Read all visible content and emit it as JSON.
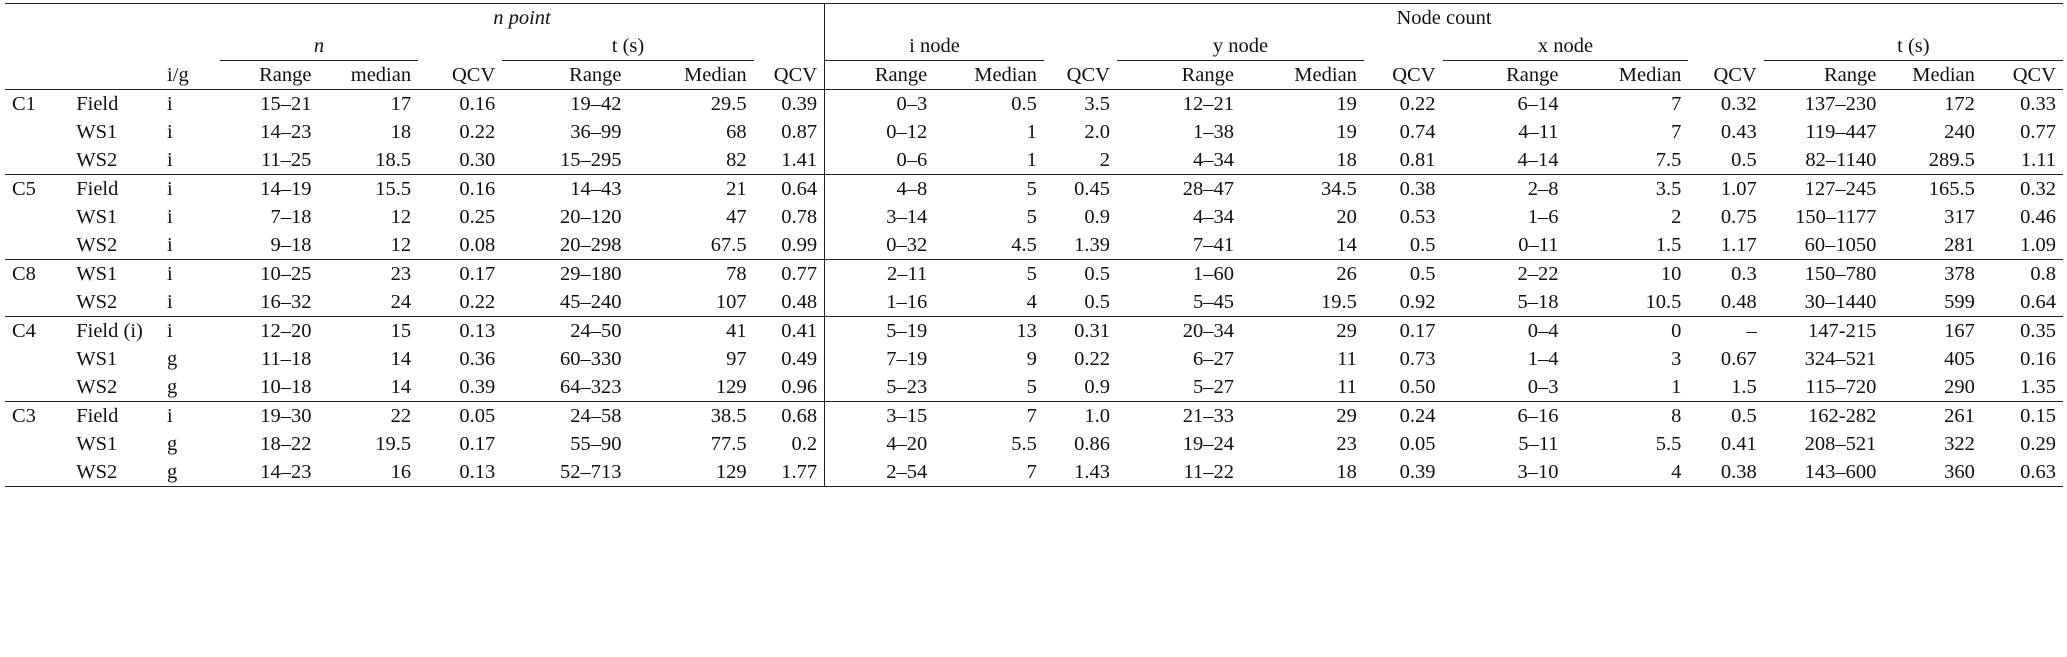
{
  "header": {
    "n_point": "n point",
    "node_count": "Node count",
    "n": "n",
    "t_s": "t (s)",
    "i_node": "i node",
    "y_node": "y node",
    "x_node": "x node",
    "ig": "i/g",
    "range": "Range",
    "median_lc": "median",
    "median": "Median",
    "qcv": "QCV"
  },
  "groups": [
    {
      "code": "C1",
      "rows": [
        {
          "site": "Field",
          "ig": "i",
          "v": [
            "15–21",
            "17",
            "0.16",
            "19–42",
            "29.5",
            "0.39",
            "0–3",
            "0.5",
            "3.5",
            "12–21",
            "19",
            "0.22",
            "6–14",
            "7",
            "0.32",
            "137–230",
            "172",
            "0.33"
          ]
        },
        {
          "site": "WS1",
          "ig": "i",
          "v": [
            "14–23",
            "18",
            "0.22",
            "36–99",
            "68",
            "0.87",
            "0–12",
            "1",
            "2.0",
            "1–38",
            "19",
            "0.74",
            "4–11",
            "7",
            "0.43",
            "119–447",
            "240",
            "0.77"
          ]
        },
        {
          "site": "WS2",
          "ig": "i",
          "v": [
            "11–25",
            "18.5",
            "0.30",
            "15–295",
            "82",
            "1.41",
            "0–6",
            "1",
            "2",
            "4–34",
            "18",
            "0.81",
            "4–14",
            "7.5",
            "0.5",
            "82–1140",
            "289.5",
            "1.11"
          ]
        }
      ]
    },
    {
      "code": "C5",
      "rows": [
        {
          "site": "Field",
          "ig": "i",
          "v": [
            "14–19",
            "15.5",
            "0.16",
            "14–43",
            "21",
            "0.64",
            "4–8",
            "5",
            "0.45",
            "28–47",
            "34.5",
            "0.38",
            "2–8",
            "3.5",
            "1.07",
            "127–245",
            "165.5",
            "0.32"
          ]
        },
        {
          "site": "WS1",
          "ig": "i",
          "v": [
            "7–18",
            "12",
            "0.25",
            "20–120",
            "47",
            "0.78",
            "3–14",
            "5",
            "0.9",
            "4–34",
            "20",
            "0.53",
            "1–6",
            "2",
            "0.75",
            "150–1177",
            "317",
            "0.46"
          ]
        },
        {
          "site": "WS2",
          "ig": "i",
          "v": [
            "9–18",
            "12",
            "0.08",
            "20–298",
            "67.5",
            "0.99",
            "0–32",
            "4.5",
            "1.39",
            "7–41",
            "14",
            "0.5",
            "0–11",
            "1.5",
            "1.17",
            "60–1050",
            "281",
            "1.09"
          ]
        }
      ]
    },
    {
      "code": "C8",
      "rows": [
        {
          "site": "WS1",
          "ig": "i",
          "v": [
            "10–25",
            "23",
            "0.17",
            "29–180",
            "78",
            "0.77",
            "2–11",
            "5",
            "0.5",
            "1–60",
            "26",
            "0.5",
            "2–22",
            "10",
            "0.3",
            "150–780",
            "378",
            "0.8"
          ]
        },
        {
          "site": "WS2",
          "ig": "i",
          "v": [
            "16–32",
            "24",
            "0.22",
            "45–240",
            "107",
            "0.48",
            "1–16",
            "4",
            "0.5",
            "5–45",
            "19.5",
            "0.92",
            "5–18",
            "10.5",
            "0.48",
            "30–1440",
            "599",
            "0.64"
          ]
        }
      ]
    },
    {
      "code": "C4",
      "rows": [
        {
          "site": "Field (i)",
          "ig": "i",
          "v": [
            "12–20",
            "15",
            "0.13",
            "24–50",
            "41",
            "0.41",
            "5–19",
            "13",
            "0.31",
            "20–34",
            "29",
            "0.17",
            "0–4",
            "0",
            "–",
            "147-215",
            "167",
            "0.35"
          ]
        },
        {
          "site": "WS1",
          "ig": "g",
          "v": [
            "11–18",
            "14",
            "0.36",
            "60–330",
            "97",
            "0.49",
            "7–19",
            "9",
            "0.22",
            "6–27",
            "11",
            "0.73",
            "1–4",
            "3",
            "0.67",
            "324–521",
            "405",
            "0.16"
          ]
        },
        {
          "site": "WS2",
          "ig": "g",
          "v": [
            "10–18",
            "14",
            "0.39",
            "64–323",
            "129",
            "0.96",
            "5–23",
            "5",
            "0.9",
            "5–27",
            "11",
            "0.50",
            "0–3",
            "1",
            "1.5",
            "115–720",
            "290",
            "1.35"
          ]
        }
      ]
    },
    {
      "code": "C3",
      "rows": [
        {
          "site": "Field",
          "ig": "i",
          "v": [
            "19–30",
            "22",
            "0.05",
            "24–58",
            "38.5",
            "0.68",
            "3–15",
            "7",
            "1.0",
            "21–33",
            "29",
            "0.24",
            "6–16",
            "8",
            "0.5",
            "162-282",
            "261",
            "0.15"
          ]
        },
        {
          "site": "WS1",
          "ig": "g",
          "v": [
            "18–22",
            "19.5",
            "0.17",
            "55–90",
            "77.5",
            "0.2",
            "4–20",
            "5.5",
            "0.86",
            "19–24",
            "23",
            "0.05",
            "5–11",
            "5.5",
            "0.41",
            "208–521",
            "322",
            "0.29"
          ]
        },
        {
          "site": "WS2",
          "ig": "g",
          "v": [
            "14–23",
            "16",
            "0.13",
            "52–713",
            "129",
            "1.77",
            "2–54",
            "7",
            "1.43",
            "11–22",
            "18",
            "0.39",
            "3–10",
            "4",
            "0.38",
            "143–600",
            "360",
            "0.63"
          ]
        }
      ]
    }
  ]
}
